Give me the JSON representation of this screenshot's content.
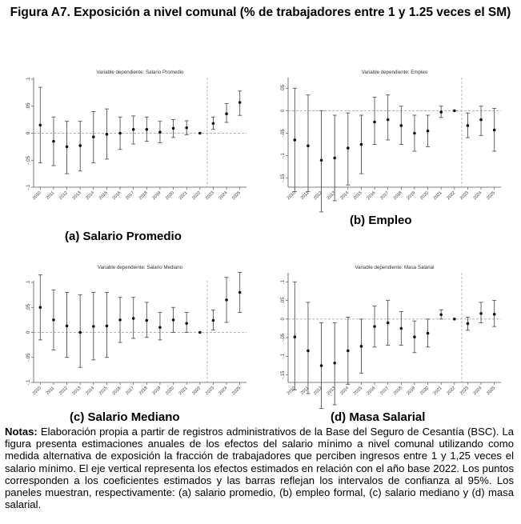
{
  "title": "Figura A7. Exposición a nivel comunal (% de trabajadores entre 1 y 1.25 veces el SM)",
  "notes": {
    "label": "Notas:",
    "text": "Elaboración propia a partir de registros administrativos de la Base del Seguro de Cesantía (BSC). La figura presenta estimaciones anuales de los efectos del salario mínimo a nivel comunal utilizando como medida alternativa de exposición la fracción de trabajadores que perciben ingresos entre 1 y 1,25 veces el salario mínimo. El eje vertical representa los efectos estimados en relación con el año base 2022. Los puntos corresponden a los coeficientes estimados y las barras reflejan los intervalos de confianza al 95%. Los paneles muestran, respectivamente: (a) salario promedio, (b) empleo formal, (c) salario mediano y (d) masa salarial."
  },
  "chart_data": [
    {
      "id": "a",
      "type": "scatter",
      "caption": "(a) Salario Promedio",
      "title": "Variable dependiente: Salario Promedio",
      "xlabel": "",
      "ylabel": "",
      "ylim": [
        -0.1,
        0.1
      ],
      "yticks": [
        ".1",
        ".05",
        "0",
        "-.05",
        "-.1"
      ],
      "ytick_values": [
        0.1,
        0.05,
        0,
        -0.05,
        -0.1
      ],
      "reference_year": "2022",
      "categories": [
        "2010",
        "2011",
        "2012",
        "2013",
        "2014",
        "2015",
        "2016",
        "2017",
        "2018",
        "2019",
        "2020",
        "2021",
        "2022",
        "2023",
        "2024",
        "2025"
      ],
      "series": [
        {
          "name": "coeficiente",
          "values": [
            0.015,
            -0.015,
            -0.025,
            -0.023,
            -0.007,
            -0.002,
            0.0,
            0.007,
            0.007,
            0.002,
            0.009,
            0.01,
            0.0,
            0.018,
            0.036,
            0.057
          ],
          "ci_low": [
            -0.055,
            -0.06,
            -0.075,
            -0.07,
            -0.055,
            -0.048,
            -0.03,
            -0.02,
            -0.015,
            -0.018,
            -0.008,
            -0.003,
            0.0,
            0.007,
            0.02,
            0.033
          ],
          "ci_high": [
            0.085,
            0.03,
            0.022,
            0.022,
            0.04,
            0.045,
            0.03,
            0.032,
            0.03,
            0.022,
            0.025,
            0.023,
            0.0,
            0.03,
            0.055,
            0.078
          ]
        }
      ]
    },
    {
      "id": "b",
      "type": "scatter",
      "caption": "(b) Empleo",
      "title": "Variable dependiente: Empleo",
      "xlabel": "",
      "ylabel": "",
      "ylim": [
        -0.17,
        0.07
      ],
      "yticks": [
        ".05",
        "0",
        "-.05",
        "-.1",
        "-.15"
      ],
      "ytick_values": [
        0.05,
        0,
        -0.05,
        -0.1,
        -0.15
      ],
      "reference_year": "2022",
      "categories": [
        "2010",
        "2011",
        "2012",
        "2013",
        "2014",
        "2015",
        "2016",
        "2017",
        "2018",
        "2019",
        "2020",
        "2021",
        "2022",
        "2023",
        "2024",
        "2025"
      ],
      "series": [
        {
          "name": "coeficiente",
          "values": [
            -0.065,
            -0.078,
            -0.11,
            -0.105,
            -0.083,
            -0.075,
            -0.025,
            -0.02,
            -0.033,
            -0.05,
            -0.045,
            -0.003,
            0.0,
            -0.033,
            -0.02,
            -0.043
          ],
          "ci_low": [
            -0.18,
            -0.18,
            -0.225,
            -0.2,
            -0.165,
            -0.14,
            -0.075,
            -0.065,
            -0.075,
            -0.09,
            -0.08,
            -0.015,
            0.0,
            -0.06,
            -0.055,
            -0.09
          ],
          "ci_high": [
            0.05,
            0.035,
            0.0,
            -0.01,
            -0.005,
            -0.01,
            0.03,
            0.035,
            0.01,
            -0.01,
            -0.01,
            0.01,
            0.0,
            -0.005,
            0.01,
            0.005
          ]
        }
      ]
    },
    {
      "id": "c",
      "type": "scatter",
      "caption": "(c) Salario Mediano",
      "title": "Variable dependiente: Salario Mediano",
      "xlabel": "",
      "ylabel": "",
      "ylim": [
        -0.1,
        0.1
      ],
      "yticks": [
        ".1",
        ".05",
        "0",
        "-.05",
        "-.1"
      ],
      "ytick_values": [
        0.1,
        0.05,
        0,
        -0.05,
        -0.1
      ],
      "reference_year": "2022",
      "categories": [
        "2010",
        "2011",
        "2012",
        "2013",
        "2014",
        "2015",
        "2016",
        "2017",
        "2018",
        "2019",
        "2020",
        "2021",
        "2022",
        "2023",
        "2024",
        "2025"
      ],
      "series": [
        {
          "name": "coeficiente",
          "values": [
            0.05,
            0.025,
            0.013,
            0.0,
            0.012,
            0.013,
            0.025,
            0.028,
            0.024,
            0.01,
            0.025,
            0.018,
            0.0,
            0.024,
            0.065,
            0.08
          ],
          "ci_low": [
            -0.015,
            -0.035,
            -0.05,
            -0.07,
            -0.055,
            -0.05,
            -0.02,
            -0.012,
            -0.01,
            -0.015,
            0.0,
            0.0,
            0.0,
            0.005,
            0.02,
            0.04
          ],
          "ci_high": [
            0.115,
            0.085,
            0.08,
            0.075,
            0.08,
            0.08,
            0.07,
            0.07,
            0.06,
            0.04,
            0.05,
            0.04,
            0.0,
            0.045,
            0.11,
            0.12
          ]
        }
      ]
    },
    {
      "id": "d",
      "type": "scatter",
      "caption": "(d) Masa Salarial",
      "title": "Variable dependiente: Masa Salarial",
      "xlabel": "",
      "ylabel": "",
      "ylim": [
        -0.17,
        0.12
      ],
      "yticks": [
        ".1",
        ".05",
        "0",
        "-.05",
        "-.1",
        "-.15"
      ],
      "ytick_values": [
        0.1,
        0.05,
        0,
        -0.05,
        -0.1,
        -0.15
      ],
      "reference_year": "2022",
      "categories": [
        "2010",
        "2011",
        "2012",
        "2013",
        "2014",
        "2015",
        "2016",
        "2017",
        "2018",
        "2019",
        "2020",
        "2021",
        "2022",
        "2023",
        "2024",
        "2025"
      ],
      "series": [
        {
          "name": "coeficiente",
          "values": [
            -0.048,
            -0.085,
            -0.125,
            -0.118,
            -0.085,
            -0.073,
            -0.02,
            -0.01,
            -0.025,
            -0.048,
            -0.038,
            0.012,
            0.0,
            -0.012,
            0.015,
            0.013
          ],
          "ci_low": [
            -0.19,
            -0.2,
            -0.24,
            -0.23,
            -0.175,
            -0.145,
            -0.075,
            -0.07,
            -0.07,
            -0.09,
            -0.075,
            0.0,
            0.0,
            -0.03,
            -0.01,
            -0.02
          ],
          "ci_high": [
            0.1,
            0.045,
            -0.01,
            -0.01,
            0.005,
            0.0,
            0.035,
            0.05,
            0.02,
            -0.005,
            0.0,
            0.025,
            0.0,
            0.005,
            0.045,
            0.05
          ]
        }
      ]
    }
  ]
}
